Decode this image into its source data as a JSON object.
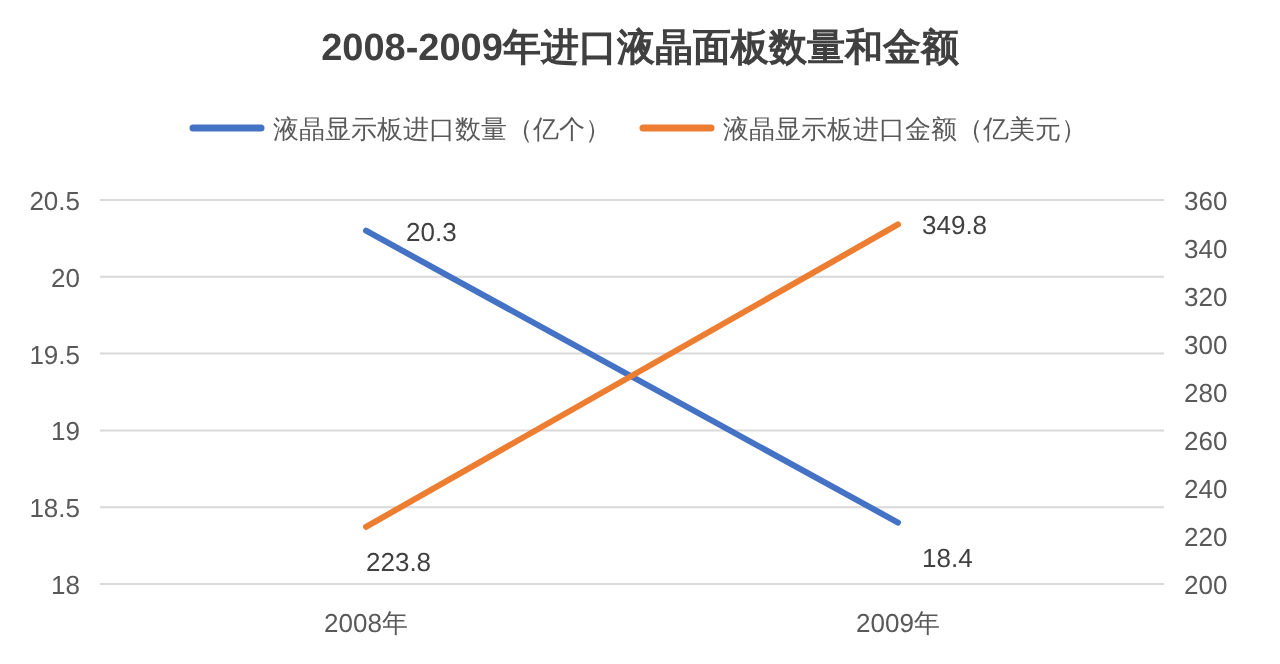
{
  "chart_data": {
    "type": "line",
    "title": "2008-2009年进口液晶面板数量和金额",
    "categories": [
      "2008年",
      "2009年"
    ],
    "series": [
      {
        "name": "液晶显示板进口数量（亿个）",
        "color": "#4472c4",
        "values": [
          20.3,
          18.4
        ]
      },
      {
        "name": "液晶显示板进口金额（亿美元）",
        "color": "#ed7d31",
        "values": [
          223.8,
          349.8
        ],
        "axis": "y2"
      }
    ],
    "ylim": [
      18,
      20.5
    ],
    "yticks": [
      18,
      18.5,
      19,
      19.5,
      20,
      20.5
    ],
    "y2lim": [
      200,
      360
    ],
    "y2ticks": [
      200,
      220,
      240,
      260,
      280,
      300,
      320,
      340,
      360
    ],
    "grid": "y",
    "legend": "top",
    "data_labels": true,
    "marker": "none",
    "line_style": "solid"
  }
}
